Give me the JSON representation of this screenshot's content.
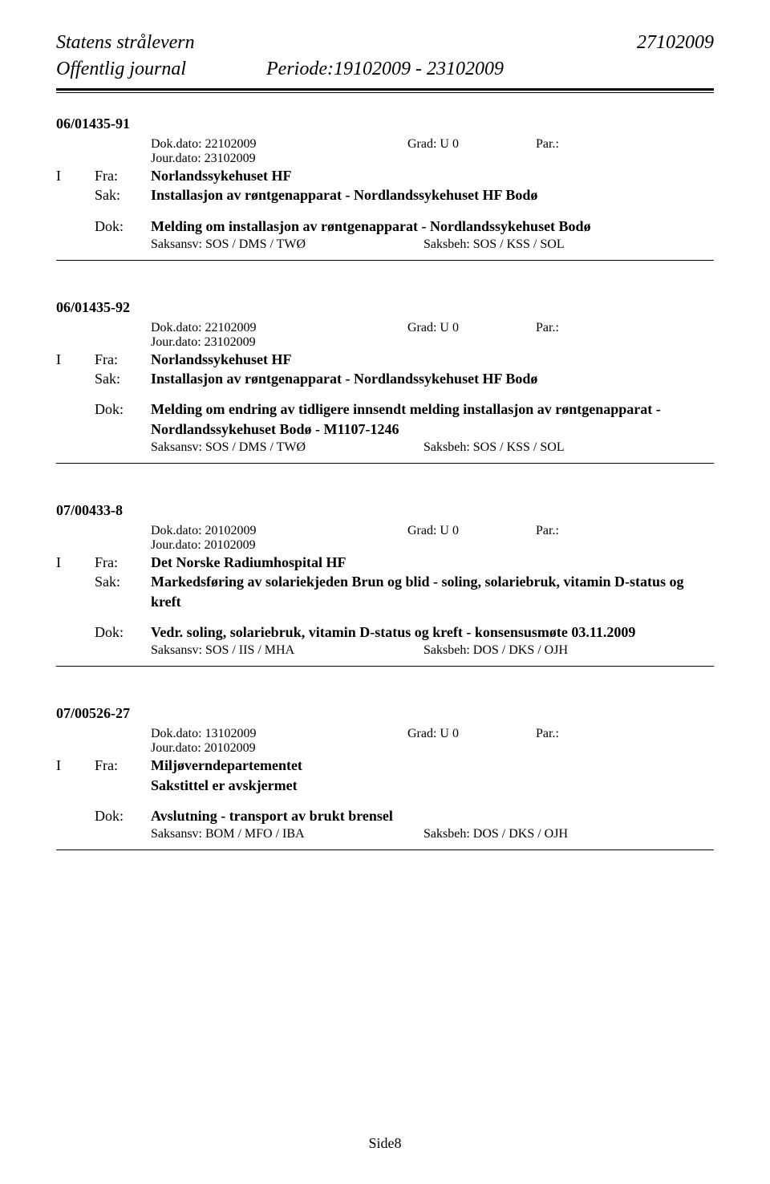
{
  "header": {
    "org": "Statens strålevern",
    "date_right": "27102009",
    "journal_label": "Offentlig journal",
    "period": "Periode:19102009 - 23102009"
  },
  "entries": [
    {
      "case_id": "06/01435-91",
      "dokdato": "Dok.dato: 22102009",
      "grad": "Grad: U 0",
      "par": "Par.:",
      "jourdato": "Jour.dato: 23102009",
      "i": "I",
      "fra_label": "Fra:",
      "fra_value": "Norlandssykehuset HF",
      "sak_label": "Sak:",
      "sak_value": "Installasjon av røntgenapparat - Nordlandssykehuset HF Bodø",
      "dok_label": "Dok:",
      "dok_value": "Melding om installasjon av røntgenapparat - Nordlandssykehuset Bodø",
      "saksansv": "Saksansv:  SOS / DMS / TWØ",
      "saksbeh": "Saksbeh: SOS / KSS / SOL"
    },
    {
      "case_id": "06/01435-92",
      "dokdato": "Dok.dato: 22102009",
      "grad": "Grad: U 0",
      "par": "Par.:",
      "jourdato": "Jour.dato: 23102009",
      "i": "I",
      "fra_label": "Fra:",
      "fra_value": "Norlandssykehuset HF",
      "sak_label": "Sak:",
      "sak_value": "Installasjon av røntgenapparat - Nordlandssykehuset HF Bodø",
      "dok_label": "Dok:",
      "dok_value": "Melding om endring av tidligere innsendt melding installasjon av røntgenapparat - Nordlandssykehuset Bodø - M1107-1246",
      "saksansv": "Saksansv:  SOS / DMS / TWØ",
      "saksbeh": "Saksbeh: SOS / KSS / SOL"
    },
    {
      "case_id": "07/00433-8",
      "dokdato": "Dok.dato: 20102009",
      "grad": "Grad: U 0",
      "par": "Par.:",
      "jourdato": "Jour.dato: 20102009",
      "i": "I",
      "fra_label": "Fra:",
      "fra_value": "Det Norske Radiumhospital HF",
      "sak_label": "Sak:",
      "sak_value": "Markedsføring av solariekjeden Brun og blid - soling, solariebruk, vitamin D-status og kreft",
      "dok_label": "Dok:",
      "dok_value": "Vedr. soling, solariebruk, vitamin D-status og kreft - konsensusmøte 03.11.2009",
      "saksansv": "Saksansv:  SOS / IIS / MHA",
      "saksbeh": "Saksbeh: DOS / DKS / OJH"
    },
    {
      "case_id": "07/00526-27",
      "dokdato": "Dok.dato: 13102009",
      "grad": "Grad: U 0",
      "par": "Par.:",
      "jourdato": "Jour.dato: 20102009",
      "i": "I",
      "fra_label": "Fra:",
      "fra_value": "Miljøverndepartementet",
      "sak_label": "",
      "sak_value": "Sakstittel er avskjermet",
      "dok_label": "Dok:",
      "dok_value": "Avslutning - transport av brukt brensel",
      "saksansv": "Saksansv:  BOM / MFO / IBA",
      "saksbeh": "Saksbeh: DOS / DKS / OJH"
    }
  ],
  "footer": "Side8"
}
